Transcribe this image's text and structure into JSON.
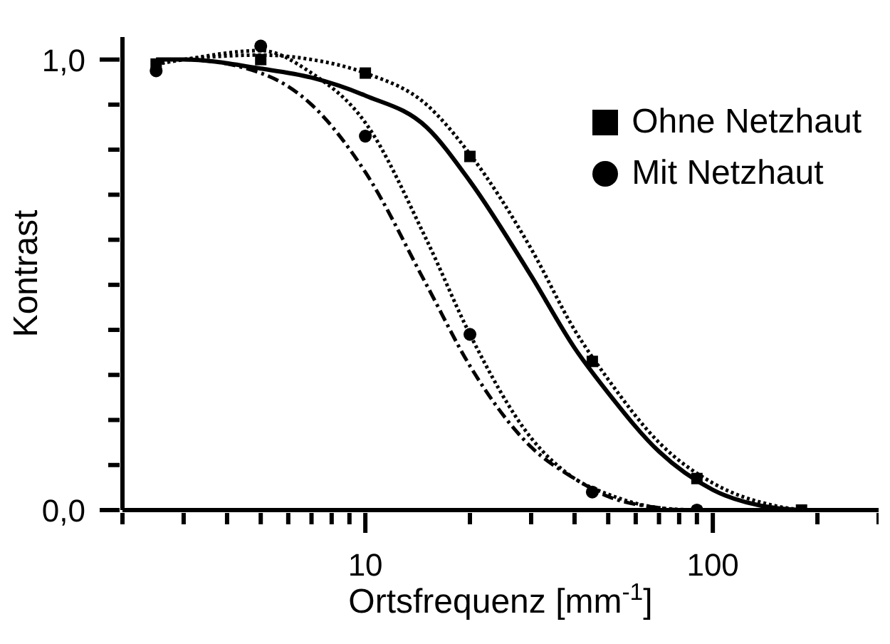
{
  "chart_data": {
    "type": "scatter",
    "xlabel": "Ortsfrequenz [mm$^{-1}$]",
    "ylabel": "Kontrast",
    "log": "x",
    "xlim": [
      2,
      300
    ],
    "xticks": [
      {
        "value": 2,
        "label": null
      },
      {
        "value": 3,
        "label": null
      },
      {
        "value": 4,
        "label": null
      },
      {
        "value": 5,
        "label": null
      },
      {
        "value": 6,
        "label": null
      },
      {
        "value": 7,
        "label": null
      },
      {
        "value": 8,
        "label": null
      },
      {
        "value": 9,
        "label": null
      },
      10,
      {
        "value": 20,
        "label": null
      },
      {
        "value": 30,
        "label": null
      },
      {
        "value": 40,
        "label": null
      },
      {
        "value": 50,
        "label": null
      },
      {
        "value": 60,
        "label": null
      },
      {
        "value": 70,
        "label": null
      },
      {
        "value": 80,
        "label": null
      },
      {
        "value": 90,
        "label": null
      },
      100,
      {
        "value": 200,
        "label": null
      },
      {
        "value": 300,
        "label": null
      }
    ],
    "ylim": [
      0,
      1.05
    ],
    "yticks": [
      {
        "value": 0,
        "label": "0,0"
      },
      {
        "value": 0.1,
        "label": null
      },
      {
        "value": 0.2,
        "label": null
      },
      {
        "value": 0.3,
        "label": null
      },
      {
        "value": 0.4,
        "label": null
      },
      {
        "value": 0.5,
        "label": null
      },
      {
        "value": 0.6,
        "label": null
      },
      {
        "value": 0.7,
        "label": null
      },
      {
        "value": 0.8,
        "label": null
      },
      {
        "value": 0.9,
        "label": null
      },
      {
        "value": 1,
        "label": "1,0"
      }
    ],
    "grid": false,
    "legend": "top right",
    "series": [
      {
        "name": "Ohne Netzhaut",
        "marker": "square",
        "color": "#000000",
        "x": [
          2.5,
          5,
          10,
          20,
          45,
          90,
          180
        ],
        "values": [
          0.99,
          1.0,
          0.97,
          0.785,
          0.33,
          0.07,
          0.0
        ]
      },
      {
        "name": "Mit Netzhaut",
        "marker": "circle",
        "color": "#000000",
        "x": [
          2.5,
          5,
          10,
          20,
          45,
          90
        ],
        "values": [
          0.975,
          1.03,
          0.83,
          0.39,
          0.04,
          0.0
        ]
      },
      {
        "type": "line",
        "line_style": "solid",
        "marker": "none",
        "color": "#000000",
        "x": [
          2.5,
          3,
          5,
          7,
          10,
          15,
          20,
          30,
          40,
          50,
          70,
          100,
          150,
          180
        ],
        "values": [
          1.0,
          1.0,
          0.98,
          0.96,
          0.92,
          0.85,
          0.73,
          0.52,
          0.36,
          0.26,
          0.13,
          0.045,
          0.005,
          0.0
        ]
      },
      {
        "type": "line",
        "line_style": "dotted",
        "marker": "none",
        "color": "#000000",
        "x": [
          2.5,
          3,
          5,
          7,
          10,
          15,
          20,
          30,
          40,
          50,
          70,
          100,
          150,
          180
        ],
        "values": [
          0.99,
          1.0,
          1.01,
          1.0,
          0.97,
          0.9,
          0.79,
          0.58,
          0.4,
          0.29,
          0.15,
          0.06,
          0.01,
          0.0
        ]
      },
      {
        "type": "line",
        "line_style": "dotted",
        "marker": "none",
        "color": "#000000",
        "x": [
          2.5,
          3,
          5,
          7,
          10,
          15,
          20,
          30,
          40,
          50,
          70,
          90
        ],
        "values": [
          0.99,
          1.0,
          1.02,
          0.97,
          0.86,
          0.6,
          0.39,
          0.16,
          0.07,
          0.035,
          0.005,
          0.0
        ]
      },
      {
        "type": "line",
        "line_style": "dashed",
        "marker": "none",
        "color": "#000000",
        "x": [
          2.5,
          3,
          5,
          7,
          10,
          15,
          20,
          30,
          40,
          50,
          70,
          80
        ],
        "values": [
          1.0,
          1.0,
          0.97,
          0.9,
          0.75,
          0.5,
          0.32,
          0.14,
          0.07,
          0.03,
          0.005,
          0.0
        ]
      }
    ]
  }
}
